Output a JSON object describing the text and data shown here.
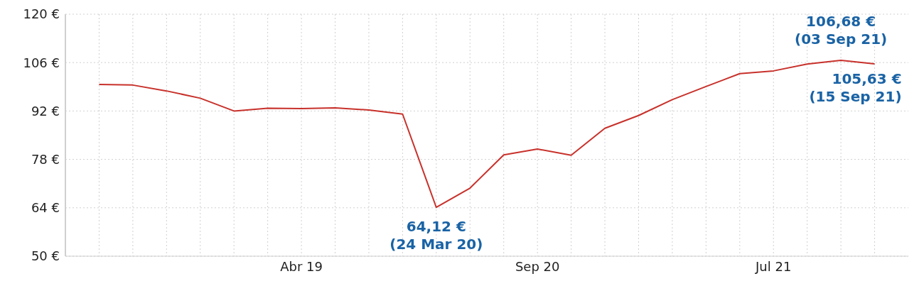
{
  "chart_data": {
    "type": "line",
    "categories": [
      null,
      null,
      null,
      null,
      null,
      null,
      "Abr 19",
      null,
      null,
      null,
      null,
      null,
      null,
      "Sep 20",
      null,
      null,
      null,
      null,
      null,
      null,
      "Jul 21",
      null,
      null,
      null
    ],
    "series": [
      {
        "color": "#c8312b",
        "values": [
          99.7,
          99.5,
          97.8,
          95.7,
          92.0,
          92.8,
          92.7,
          92.9,
          92.3,
          91.1,
          64.12,
          69.7,
          79.3,
          81.0,
          79.2,
          87.0,
          90.7,
          95.3,
          99.1,
          102.8,
          103.6,
          105.6,
          106.68,
          105.63
        ]
      }
    ],
    "ylim": [
      50,
      120
    ],
    "yticks": [
      {
        "value": 50,
        "label": "50 €"
      },
      {
        "value": 64,
        "label": "64 €"
      },
      {
        "value": 78,
        "label": "78 €"
      },
      {
        "value": 92,
        "label": "92 €"
      },
      {
        "value": 106,
        "label": "106 €"
      },
      {
        "value": 120,
        "label": "120 €"
      }
    ],
    "annotations": [
      {
        "text": "64,12 €\n(24 Mar 20)",
        "y": 64.12
      },
      {
        "text": "106,68 €\n(03 Sep 21)",
        "y": 106.68
      },
      {
        "text": "105,63 €\n(15 Sep 21)",
        "y": 105.63
      }
    ],
    "grid": true,
    "legend": false,
    "marker": "none",
    "line_style": "solid"
  }
}
